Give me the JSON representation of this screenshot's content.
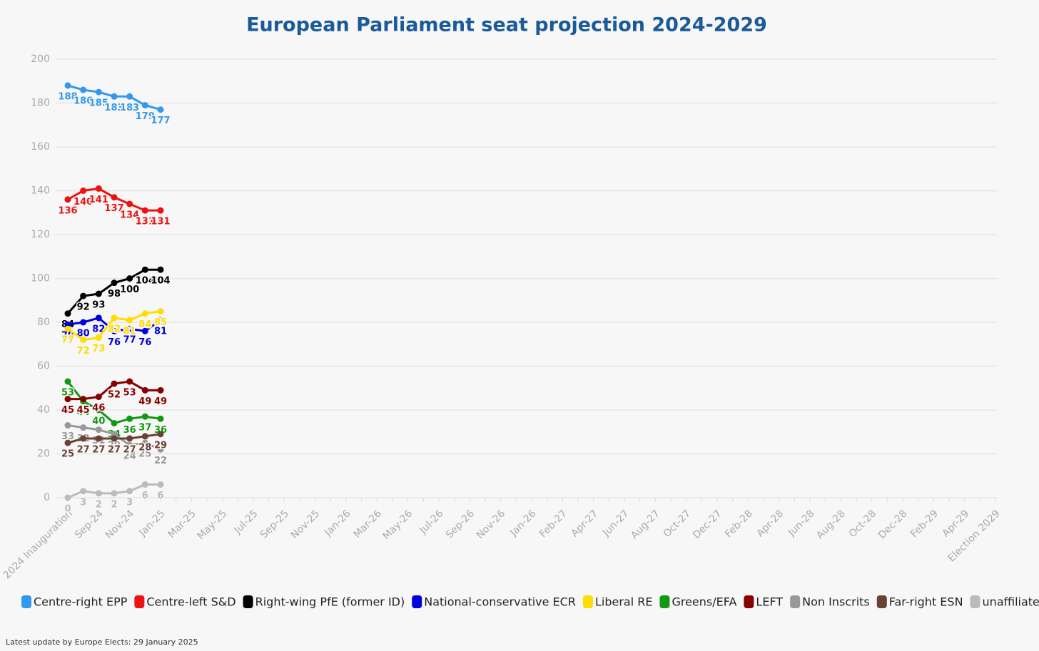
{
  "chart_data": {
    "type": "line",
    "title": "European Parliament seat projection 2024-2029",
    "footnote": "Latest update by Europe Elects: 29 January 2025",
    "categories": [
      "2024 Inauguration",
      null,
      "Sep-24",
      null,
      "Nov-24",
      null,
      "Jan-25",
      null,
      "Mar-25",
      null,
      "May-25",
      null,
      "Jul-25",
      null,
      "Sep-25",
      null,
      "Nov-25",
      null,
      "Jan-26",
      null,
      "Mar-26",
      null,
      "May-26",
      null,
      "Jul-26",
      null,
      "Sep-26",
      null,
      "Nov-26",
      null,
      "Jan-26",
      null,
      "Feb-27",
      null,
      "Apr-27",
      null,
      "Jun-27",
      null,
      "Aug-27",
      null,
      "Oct-27",
      null,
      "Dec-27",
      null,
      "Feb-28",
      null,
      "Apr-28",
      null,
      "Jun-28",
      null,
      "Aug-28",
      null,
      "Oct-28",
      null,
      "Dec-28",
      null,
      "Feb-29",
      null,
      "Apr-29",
      null,
      "Election 2029"
    ],
    "ylim": [
      0,
      200
    ],
    "yticks": [
      0,
      20,
      40,
      60,
      80,
      100,
      120,
      140,
      160,
      180,
      200
    ],
    "grid": true,
    "series": [
      {
        "name": "Centre-right EPP",
        "color": "#3399ee",
        "values": [
          188,
          186,
          185,
          183,
          183,
          179,
          177,
          null,
          null,
          null,
          null,
          null,
          null,
          null,
          null,
          null,
          null,
          null,
          null,
          null,
          null,
          null,
          null,
          null,
          null,
          null,
          null,
          null,
          null,
          null,
          null,
          null,
          null,
          null,
          null,
          null,
          null,
          null,
          null,
          null,
          null,
          null,
          null,
          null,
          null,
          null,
          null,
          null,
          null,
          null,
          null,
          null,
          null,
          null,
          null,
          null,
          null,
          null,
          null,
          null,
          null
        ]
      },
      {
        "name": "Centre-left S&D",
        "color": "#ee1111",
        "values": [
          136,
          140,
          141,
          137,
          134,
          131,
          131,
          null,
          null,
          null,
          null,
          null,
          null,
          null,
          null,
          null,
          null,
          null,
          null,
          null,
          null,
          null,
          null,
          null,
          null,
          null,
          null,
          null,
          null,
          null,
          null,
          null,
          null,
          null,
          null,
          null,
          null,
          null,
          null,
          null,
          null,
          null,
          null,
          null,
          null,
          null,
          null,
          null,
          null,
          null,
          null,
          null,
          null,
          null,
          null,
          null,
          null,
          null,
          null,
          null,
          null
        ]
      },
      {
        "name": "Right-wing PfE (former ID)",
        "color": "#000000",
        "values": [
          84,
          92,
          93,
          98,
          100,
          104,
          104,
          null,
          null,
          null,
          null,
          null,
          null,
          null,
          null,
          null,
          null,
          null,
          null,
          null,
          null,
          null,
          null,
          null,
          null,
          null,
          null,
          null,
          null,
          null,
          null,
          null,
          null,
          null,
          null,
          null,
          null,
          null,
          null,
          null,
          null,
          null,
          null,
          null,
          null,
          null,
          null,
          null,
          null,
          null,
          null,
          null,
          null,
          null,
          null,
          null,
          null,
          null,
          null,
          null,
          null
        ]
      },
      {
        "name": "National-conservative ECR",
        "color": "#0000dd",
        "values": [
          79,
          80,
          82,
          76,
          77,
          76,
          81,
          null,
          null,
          null,
          null,
          null,
          null,
          null,
          null,
          null,
          null,
          null,
          null,
          null,
          null,
          null,
          null,
          null,
          null,
          null,
          null,
          null,
          null,
          null,
          null,
          null,
          null,
          null,
          null,
          null,
          null,
          null,
          null,
          null,
          null,
          null,
          null,
          null,
          null,
          null,
          null,
          null,
          null,
          null,
          null,
          null,
          null,
          null,
          null,
          null,
          null,
          null,
          null,
          null,
          null
        ]
      },
      {
        "name": "Liberal RE",
        "color": "#ffdd00",
        "values": [
          77,
          72,
          73,
          82,
          81,
          84,
          85,
          null,
          null,
          null,
          null,
          null,
          null,
          null,
          null,
          null,
          null,
          null,
          null,
          null,
          null,
          null,
          null,
          null,
          null,
          null,
          null,
          null,
          null,
          null,
          null,
          null,
          null,
          null,
          null,
          null,
          null,
          null,
          null,
          null,
          null,
          null,
          null,
          null,
          null,
          null,
          null,
          null,
          null,
          null,
          null,
          null,
          null,
          null,
          null,
          null,
          null,
          null,
          null,
          null,
          null
        ]
      },
      {
        "name": "Greens/EFA",
        "color": "#119911",
        "values": [
          53,
          44,
          40,
          34,
          36,
          37,
          36,
          null,
          null,
          null,
          null,
          null,
          null,
          null,
          null,
          null,
          null,
          null,
          null,
          null,
          null,
          null,
          null,
          null,
          null,
          null,
          null,
          null,
          null,
          null,
          null,
          null,
          null,
          null,
          null,
          null,
          null,
          null,
          null,
          null,
          null,
          null,
          null,
          null,
          null,
          null,
          null,
          null,
          null,
          null,
          null,
          null,
          null,
          null,
          null,
          null,
          null,
          null,
          null,
          null,
          null
        ]
      },
      {
        "name": "LEFT",
        "color": "#880000",
        "values": [
          45,
          45,
          46,
          52,
          53,
          49,
          49,
          null,
          null,
          null,
          null,
          null,
          null,
          null,
          null,
          null,
          null,
          null,
          null,
          null,
          null,
          null,
          null,
          null,
          null,
          null,
          null,
          null,
          null,
          null,
          null,
          null,
          null,
          null,
          null,
          null,
          null,
          null,
          null,
          null,
          null,
          null,
          null,
          null,
          null,
          null,
          null,
          null,
          null,
          null,
          null,
          null,
          null,
          null,
          null,
          null,
          null,
          null,
          null,
          null,
          null
        ]
      },
      {
        "name": "Non Inscrits",
        "color": "#999999",
        "values": [
          33,
          32,
          31,
          29,
          24,
          25,
          22,
          null,
          null,
          null,
          null,
          null,
          null,
          null,
          null,
          null,
          null,
          null,
          null,
          null,
          null,
          null,
          null,
          null,
          null,
          null,
          null,
          null,
          null,
          null,
          null,
          null,
          null,
          null,
          null,
          null,
          null,
          null,
          null,
          null,
          null,
          null,
          null,
          null,
          null,
          null,
          null,
          null,
          null,
          null,
          null,
          null,
          null,
          null,
          null,
          null,
          null,
          null,
          null,
          null,
          null
        ]
      },
      {
        "name": "Far-right ESN",
        "color": "#6b4035",
        "values": [
          25,
          27,
          27,
          27,
          27,
          28,
          29,
          null,
          null,
          null,
          null,
          null,
          null,
          null,
          null,
          null,
          null,
          null,
          null,
          null,
          null,
          null,
          null,
          null,
          null,
          null,
          null,
          null,
          null,
          null,
          null,
          null,
          null,
          null,
          null,
          null,
          null,
          null,
          null,
          null,
          null,
          null,
          null,
          null,
          null,
          null,
          null,
          null,
          null,
          null,
          null,
          null,
          null,
          null,
          null,
          null,
          null,
          null,
          null,
          null,
          null
        ]
      },
      {
        "name": "unaffiliated",
        "color": "#bbbbbb",
        "values": [
          0,
          3,
          2,
          2,
          3,
          6,
          6,
          null,
          null,
          null,
          null,
          null,
          null,
          null,
          null,
          null,
          null,
          null,
          null,
          null,
          null,
          null,
          null,
          null,
          null,
          null,
          null,
          null,
          null,
          null,
          null,
          null,
          null,
          null,
          null,
          null,
          null,
          null,
          null,
          null,
          null,
          null,
          null,
          null,
          null,
          null,
          null,
          null,
          null,
          null,
          null,
          null,
          null,
          null,
          null,
          null,
          null,
          null,
          null,
          null,
          null
        ]
      }
    ]
  }
}
